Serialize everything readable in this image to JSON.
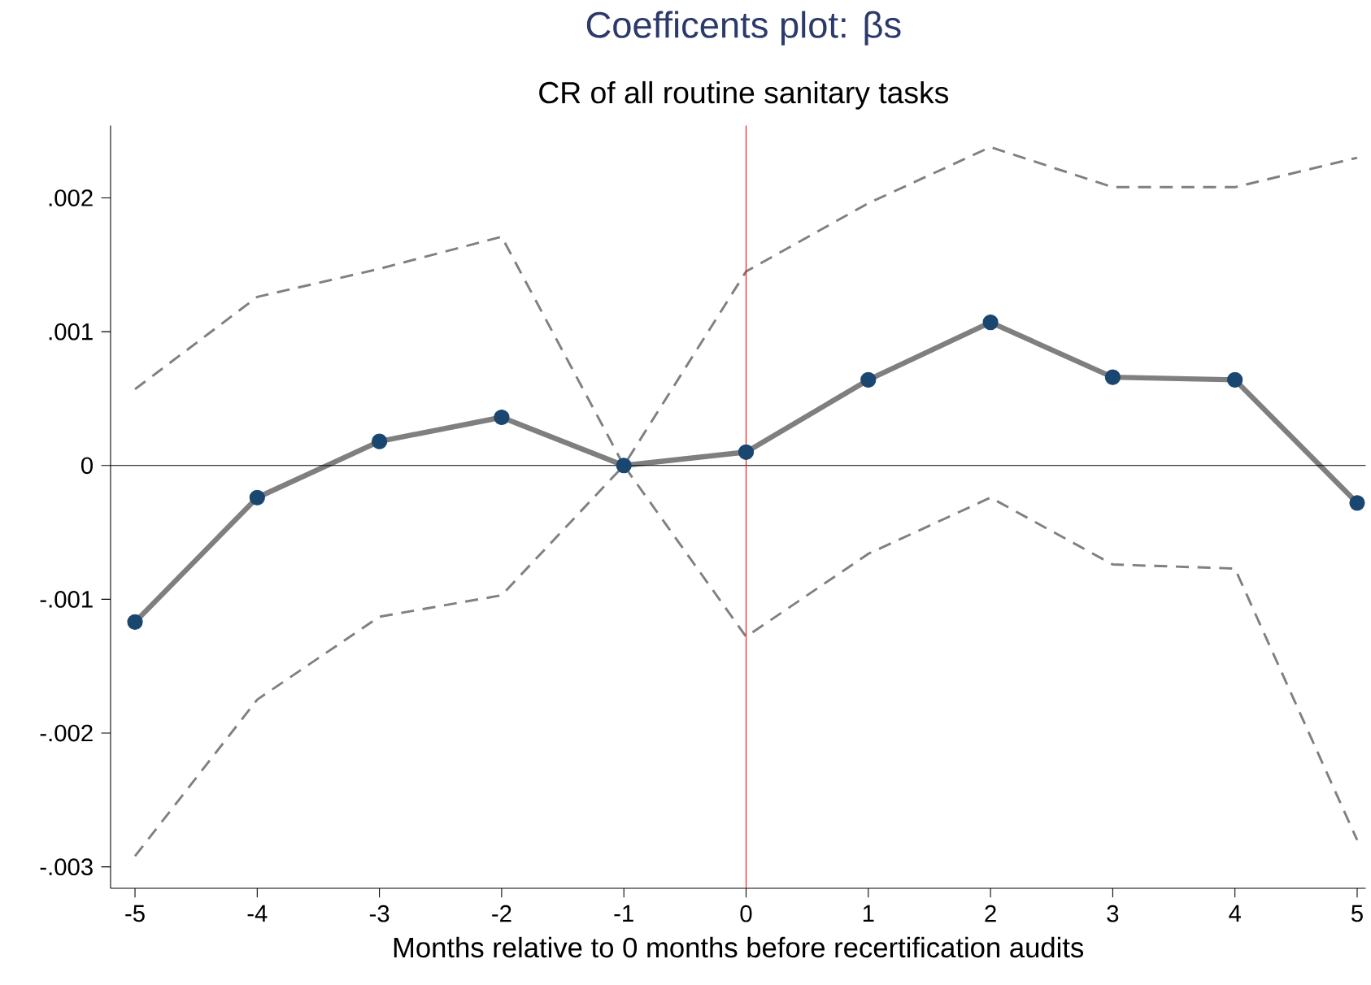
{
  "chart_data": {
    "type": "line",
    "title": "Coefficents plot: βs",
    "subtitle": "CR of all routine sanitary tasks",
    "xlabel": "Months relative to 0 months before recertification audits",
    "x": [
      -5,
      -4,
      -3,
      -2,
      -1,
      0,
      1,
      2,
      3,
      4,
      5
    ],
    "series": [
      {
        "color": "#808080",
        "line_style": "dashed",
        "marker": "none",
        "values": [
          0.00057,
          0.00126,
          0.00147,
          0.00171,
          0,
          0.00145,
          0.00196,
          0.00238,
          0.00208,
          0.00208,
          0.0023
        ]
      },
      {
        "color": "#808080",
        "line_style": "dashed",
        "marker": "none",
        "values": [
          -0.00292,
          -0.00175,
          -0.00113,
          -0.00097,
          0,
          -0.00128,
          -0.00066,
          -0.00024,
          -0.00074,
          -0.00077,
          -0.0028
        ]
      },
      {
        "color": "#7f7f7f",
        "colors": [
          "#1a476f",
          "#1a476f",
          "#1a476f",
          "#1a476f",
          "#1a476f",
          "#1a476f",
          "#1a476f",
          "#1a476f",
          "#1a476f",
          "#1a476f",
          "#1a476f"
        ],
        "line_style": "solid",
        "marker": "circle",
        "values": [
          -0.00117,
          -0.00024,
          0.00018,
          0.00036,
          0,
          0.0001,
          0.00064,
          0.00107,
          0.00066,
          0.00064,
          -0.00028
        ]
      }
    ],
    "xlim": [
      -5.2,
      5.07
    ],
    "ylim": [
      -0.00316,
      0.00254
    ],
    "xticks": [
      -5,
      -4,
      -3,
      -2,
      -1,
      0,
      1,
      2,
      3,
      4,
      5
    ],
    "yticks": [
      {
        "value": -0.003,
        "label": "-.003"
      },
      {
        "value": -0.002,
        "label": "-.002"
      },
      {
        "value": -0.001,
        "label": "-.001"
      },
      {
        "value": 0,
        "label": "0"
      },
      {
        "value": 0.001,
        "label": ".001"
      },
      {
        "value": 0.002,
        "label": ".002"
      }
    ],
    "ref_lines": [
      {
        "axis": "y",
        "value": 0,
        "color": "#000000"
      },
      {
        "axis": "x",
        "value": 0,
        "color": "#ff0000"
      }
    ],
    "grid": false
  }
}
